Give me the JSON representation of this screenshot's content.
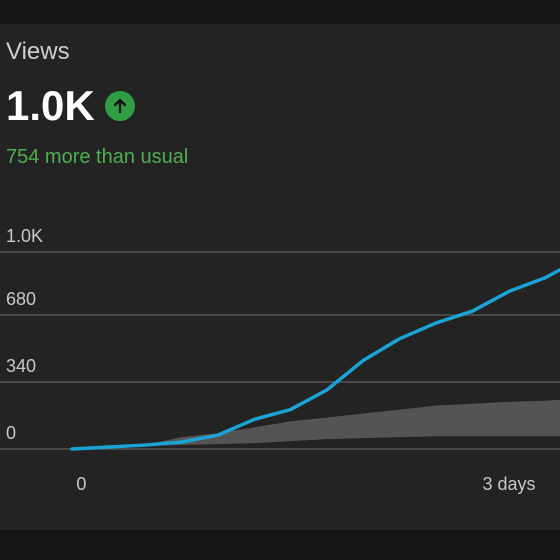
{
  "card": {
    "title": "Views",
    "metric": "1.0K",
    "trend_icon": "arrow-up-icon",
    "delta_text": "754 more than usual"
  },
  "colors": {
    "line": "#1aa3d4",
    "band": "#5a5a5a",
    "grid": "#555555",
    "trend": "#2f9e44",
    "delta": "#4caf50"
  },
  "chart_data": {
    "type": "area",
    "ylim": [
      0,
      1000
    ],
    "y_ticks": [
      0,
      340,
      680,
      1000
    ],
    "y_tick_labels": [
      "0",
      "340",
      "680",
      "1.0K"
    ],
    "x_tick_labels": [
      "0",
      "3 days"
    ],
    "grid": true,
    "series": [
      {
        "kind": "line",
        "x": [
          0,
          0.25,
          0.5,
          0.75,
          1.0,
          1.25,
          1.5,
          1.75,
          2.0,
          2.25,
          2.5,
          2.75,
          3.0,
          3.25,
          3.35
        ],
        "values": [
          0,
          10,
          20,
          35,
          70,
          150,
          200,
          300,
          450,
          560,
          640,
          700,
          800,
          870,
          910
        ]
      },
      {
        "kind": "band",
        "x": [
          0,
          0.5,
          0.75,
          1.0,
          1.25,
          1.5,
          1.75,
          2.0,
          2.25,
          2.5,
          2.75,
          3.0,
          3.25,
          3.35
        ],
        "upper": [
          0,
          20,
          60,
          80,
          110,
          140,
          160,
          180,
          200,
          220,
          230,
          240,
          245,
          250
        ],
        "lower": [
          0,
          15,
          20,
          25,
          30,
          40,
          50,
          55,
          60,
          65,
          65,
          65,
          65,
          65
        ]
      }
    ]
  }
}
